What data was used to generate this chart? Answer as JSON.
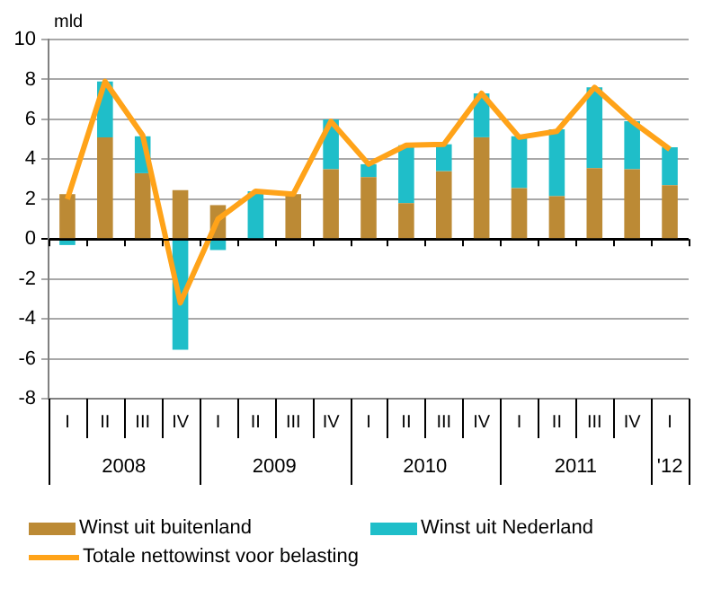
{
  "chart_data": {
    "type": "bar",
    "stacked": true,
    "ylabel": "mld",
    "categories": [
      "I",
      "II",
      "III",
      "IV",
      "I",
      "II",
      "III",
      "IV",
      "I",
      "II",
      "III",
      "IV",
      "I",
      "II",
      "III",
      "IV",
      "I"
    ],
    "annotations": [
      "2008",
      "2009",
      "2010",
      "2011",
      "'12"
    ],
    "series": [
      {
        "name": "Winst uit buitenland",
        "color": "#bc8a35",
        "values": [
          2.25,
          5.1,
          3.3,
          2.45,
          1.7,
          0,
          2.25,
          3.5,
          3.1,
          1.8,
          3.4,
          5.1,
          2.55,
          2.15,
          3.55,
          3.5,
          2.7
        ]
      },
      {
        "name": "Winst uit Nederland",
        "color": "#1fbec9",
        "values": [
          -0.3,
          2.8,
          1.85,
          -5.55,
          -0.55,
          2.4,
          0,
          2.5,
          0.65,
          2.9,
          1.35,
          2.2,
          2.6,
          3.35,
          4.05,
          2.4,
          1.9
        ]
      },
      {
        "name": "Totale nettowinst voor belasting",
        "type": "line",
        "color": "#ffa319",
        "values": [
          2.0,
          7.9,
          5.2,
          -3.2,
          1.0,
          2.4,
          2.25,
          5.9,
          3.75,
          4.7,
          4.75,
          7.3,
          5.1,
          5.4,
          7.6,
          5.9,
          4.5
        ]
      }
    ],
    "ylim": [
      -8,
      10
    ],
    "yticks": [
      -8,
      -6,
      -4,
      -2,
      0,
      2,
      4,
      6,
      8,
      10
    ],
    "grid": "y",
    "legend": "bottom",
    "marker": "none"
  }
}
